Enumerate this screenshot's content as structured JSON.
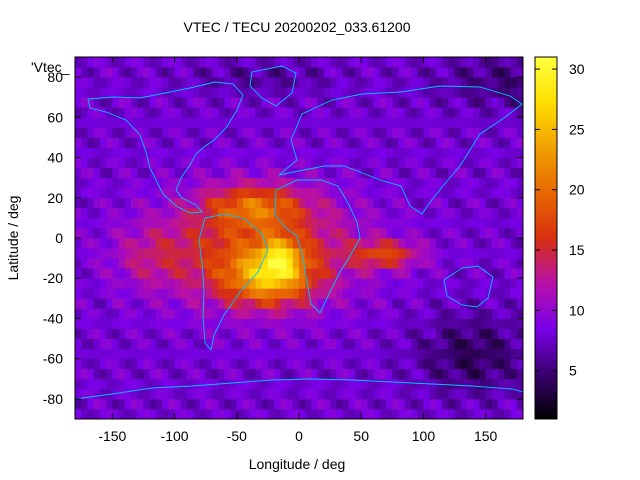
{
  "chart_data": {
    "type": "heatmap",
    "title": "VTEC / TECU 20200202_033.61200",
    "xlabel": "Longitude / deg",
    "ylabel": "Latitude / deg",
    "series_label": "'Vtec_",
    "xlim": [
      -180,
      180
    ],
    "ylim": [
      -90,
      90
    ],
    "x_ticks": [
      -150,
      -100,
      -50,
      0,
      50,
      100,
      150
    ],
    "y_ticks": [
      -80,
      -60,
      -40,
      -20,
      0,
      20,
      40,
      60,
      80
    ],
    "x_tick_labels": [
      "-150",
      "-100",
      "-50",
      "0",
      "50",
      "100",
      "150"
    ],
    "y_tick_labels": [
      "-80",
      "-60",
      "-40",
      "-20",
      "0",
      "20",
      "40",
      "60",
      "80"
    ],
    "colorbar": {
      "range": [
        1,
        31
      ],
      "ticks": [
        5,
        10,
        15,
        20,
        25,
        30
      ],
      "tick_labels": [
        "5",
        "10",
        "15",
        "20",
        "25",
        "30"
      ],
      "colormap": [
        "#000000",
        "#3a0070",
        "#7a00e8",
        "#b810a8",
        "#d83010",
        "#e86800",
        "#f0a000",
        "#ffe000",
        "#ffff40"
      ]
    },
    "field_features": {
      "background_vtec": 8,
      "peak": {
        "lon": -15,
        "lat": -10,
        "vtec": 31
      },
      "north_crest": {
        "lon": -35,
        "lat": 16,
        "vtec": 24
      },
      "south_crest": {
        "lon": -25,
        "lat": -20,
        "vtec": 27
      },
      "eastern_tongue": {
        "lon": 70,
        "lat": -8,
        "vtec": 19
      },
      "western_extent": {
        "lon": -120,
        "lat": -10,
        "vtec": 14
      }
    },
    "coastline_color": "#00c0ff"
  }
}
